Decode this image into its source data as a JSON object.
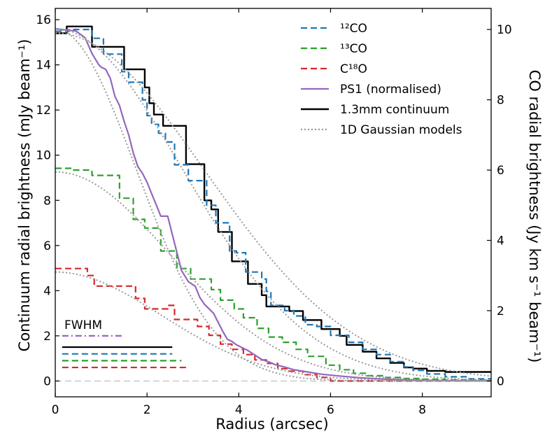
{
  "chart_data": {
    "type": "line",
    "xlabel": "Radius (arcsec)",
    "ylabel_left": "Continuum radial brightness (mJy beam⁻¹)",
    "ylabel_right": "CO radial brightness (Jy km s⁻¹ beam⁻¹)",
    "xlim": [
      0,
      9.5
    ],
    "ylim_left": [
      -0.7,
      16.5
    ],
    "ylim_right": [
      -0.45,
      10.6
    ],
    "x_ticks": [
      0,
      2,
      4,
      6,
      8
    ],
    "y_ticks_left": [
      0,
      2,
      4,
      6,
      8,
      10,
      12,
      14,
      16
    ],
    "y_ticks_right": [
      0,
      2,
      4,
      6,
      8,
      10
    ],
    "legend_position": "top-right",
    "colors": {
      "co12": "#1f77b4",
      "co13": "#2ca02c",
      "c18o": "#d62728",
      "ps1": "#9467bd",
      "continuum": "#000000",
      "gauss": "#999999",
      "zero": "#cccccc"
    },
    "legend": [
      {
        "key": "co12",
        "label": "¹²CO",
        "style": "dashed"
      },
      {
        "key": "co13",
        "label": "¹³CO",
        "style": "dashed"
      },
      {
        "key": "c18o",
        "label": "C¹⁸O",
        "style": "dashed"
      },
      {
        "key": "ps1",
        "label": "PS1 (normalised)",
        "style": "solid"
      },
      {
        "key": "continuum",
        "label": "1.3mm continuum",
        "style": "solid"
      },
      {
        "key": "gauss",
        "label": "1D Gaussian models",
        "style": "dotted"
      }
    ],
    "series": [
      {
        "key": "continuum",
        "name": "1.3mm continuum",
        "axis": "left",
        "style": "solid",
        "width": 2.4,
        "step": true,
        "x": [
          0,
          0.25,
          0.6,
          0.8,
          1.5,
          1.85,
          1.95,
          2.05,
          2.15,
          2.35,
          2.5,
          2.85,
          3.1,
          3.25,
          3.4,
          3.55,
          3.85,
          4.0,
          4.2,
          4.5,
          4.6,
          5.1,
          5.4,
          5.8,
          6.2,
          6.35,
          6.7,
          7.0,
          7.3,
          7.6,
          7.8,
          8.1,
          8.5,
          8.8,
          9.1,
          9.5
        ],
        "y": [
          15.4,
          15.7,
          15.7,
          14.8,
          13.8,
          13.8,
          13.0,
          12.3,
          11.8,
          11.3,
          11.3,
          9.6,
          9.6,
          8.0,
          7.6,
          6.6,
          5.3,
          5.3,
          4.3,
          3.8,
          3.3,
          3.1,
          2.7,
          2.3,
          2.0,
          1.6,
          1.3,
          1.0,
          0.8,
          0.6,
          0.55,
          0.45,
          0.4,
          0.4,
          0.4,
          0.4
        ]
      },
      {
        "key": "co12",
        "name": "¹²CO",
        "axis": "right",
        "style": "dashed",
        "width": 2.2,
        "step": true,
        "x": [
          0,
          0.3,
          0.6,
          0.8,
          1.05,
          1.35,
          1.45,
          1.6,
          1.9,
          2.0,
          2.1,
          2.25,
          2.4,
          2.5,
          2.6,
          2.9,
          3.1,
          3.3,
          3.5,
          3.8,
          3.95,
          4.15,
          4.5,
          4.6,
          4.7,
          5.0,
          5.2,
          5.45,
          5.7,
          6.0,
          6.4,
          6.7,
          7.0,
          7.3,
          7.6,
          7.8,
          8.1,
          8.5,
          9.0,
          9.5
        ],
        "y": [
          9.95,
          10.0,
          10.0,
          9.75,
          9.3,
          9.3,
          8.8,
          8.5,
          8.0,
          7.55,
          7.3,
          7.05,
          6.8,
          6.8,
          6.15,
          5.7,
          5.7,
          5.0,
          4.5,
          3.7,
          3.65,
          3.1,
          2.9,
          2.55,
          2.15,
          2.0,
          1.85,
          1.6,
          1.55,
          1.3,
          1.1,
          0.9,
          0.75,
          0.55,
          0.4,
          0.3,
          0.2,
          0.12,
          0.06,
          0.03
        ]
      },
      {
        "key": "co13",
        "name": "¹³CO",
        "axis": "right",
        "style": "dashed",
        "width": 2.2,
        "step": true,
        "x": [
          0,
          0.4,
          0.8,
          1.4,
          1.7,
          1.95,
          2.3,
          2.5,
          2.65,
          2.95,
          3.15,
          3.4,
          3.6,
          3.9,
          4.1,
          4.4,
          4.65,
          4.95,
          5.25,
          5.5,
          5.9,
          6.2,
          6.5,
          6.8,
          7.2,
          7.6,
          8.0,
          8.5,
          9.0,
          9.5
        ],
        "y": [
          6.05,
          6.0,
          5.85,
          5.2,
          4.6,
          4.35,
          3.7,
          3.7,
          3.2,
          2.9,
          2.9,
          2.6,
          2.3,
          2.05,
          1.8,
          1.5,
          1.25,
          1.1,
          0.9,
          0.7,
          0.45,
          0.32,
          0.22,
          0.15,
          0.1,
          0.07,
          0.05,
          0.03,
          0.02,
          0.01
        ]
      },
      {
        "key": "c18o",
        "name": "C¹⁸O",
        "axis": "right",
        "style": "dashed",
        "width": 2.2,
        "step": true,
        "x": [
          0,
          0.35,
          0.7,
          0.85,
          1.3,
          1.75,
          1.95,
          2.15,
          2.45,
          2.6,
          2.9,
          3.1,
          3.35,
          3.6,
          3.85,
          4.1,
          4.35,
          4.6,
          4.85,
          5.1,
          5.4,
          5.7,
          6.0,
          6.5,
          7.0,
          8.0,
          9.5
        ],
        "y": [
          3.2,
          3.2,
          3.0,
          2.7,
          2.7,
          2.35,
          2.05,
          2.05,
          2.15,
          1.75,
          1.75,
          1.55,
          1.3,
          1.05,
          0.9,
          0.75,
          0.6,
          0.5,
          0.35,
          0.28,
          0.18,
          0.1,
          0.0,
          0.0,
          0.0,
          0.0,
          0.0
        ]
      },
      {
        "key": "ps1",
        "name": "PS1 (normalised)",
        "axis": "left",
        "style": "solid",
        "width": 2.2,
        "step": false,
        "x": [
          0,
          0.2,
          0.45,
          0.65,
          0.8,
          0.95,
          1.0,
          1.1,
          1.2,
          1.3,
          1.4,
          1.5,
          1.6,
          1.7,
          1.8,
          1.9,
          2.0,
          2.1,
          2.2,
          2.3,
          2.45,
          2.55,
          2.65,
          2.75,
          2.9,
          3.05,
          3.15,
          3.25,
          3.35,
          3.45,
          3.55,
          3.65,
          3.75,
          3.85,
          3.95,
          4.05,
          4.2,
          4.35,
          4.5,
          4.65,
          4.8,
          5.0,
          5.2,
          5.5,
          5.8,
          6.2,
          6.6,
          7.0,
          7.5,
          8.0,
          9.0,
          9.5
        ],
        "y": [
          15.6,
          15.55,
          15.5,
          15.2,
          14.5,
          14.0,
          13.9,
          13.8,
          13.4,
          12.6,
          12.2,
          11.5,
          10.9,
          10.1,
          9.5,
          9.2,
          8.8,
          8.3,
          7.8,
          7.3,
          7.3,
          6.5,
          5.7,
          4.9,
          4.4,
          4.2,
          3.7,
          3.4,
          3.2,
          3.0,
          2.6,
          2.2,
          1.85,
          1.75,
          1.6,
          1.5,
          1.35,
          1.15,
          0.95,
          0.85,
          0.72,
          0.62,
          0.5,
          0.4,
          0.3,
          0.22,
          0.15,
          0.1,
          0.06,
          0.03,
          0.01,
          0.0
        ]
      },
      {
        "key": "gauss",
        "name": "1D Gaussian models",
        "axis": "left",
        "style": "dotted",
        "width": 2.0,
        "model": {
          "type": "gaussian",
          "amp": 15.6,
          "sigma": 2.75,
          "n": 96
        }
      },
      {
        "key": "gauss",
        "name": "1D Gaussian models",
        "axis": "right",
        "style": "dotted",
        "width": 2.0,
        "model": {
          "type": "gaussian",
          "amp": 9.9,
          "sigma": 3.25,
          "n": 96
        }
      },
      {
        "key": "gauss",
        "name": "1D Gaussian models",
        "axis": "right",
        "style": "dotted",
        "width": 2.0,
        "model": {
          "type": "gaussian",
          "amp": 5.95,
          "sigma": 2.5,
          "n": 96
        }
      },
      {
        "key": "gauss",
        "name": "1D Gaussian models",
        "axis": "right",
        "style": "dotted",
        "width": 2.0,
        "model": {
          "type": "gaussian",
          "amp": 3.1,
          "sigma": 2.3,
          "n": 96
        }
      },
      {
        "key": "gauss",
        "name": "1D Gaussian models",
        "axis": "left",
        "style": "dotted",
        "width": 2.0,
        "model": {
          "type": "gaussian",
          "amp": 15.6,
          "sigma": 1.75,
          "n": 96
        }
      }
    ],
    "zero_line": {
      "axis": "left",
      "y": 0
    },
    "fwhm": {
      "title": "FWHM",
      "bars": [
        {
          "key": "ps1",
          "y": 2.0,
          "x": [
            0.15,
            1.45
          ],
          "style": "dashdot"
        },
        {
          "key": "continuum",
          "y": 1.5,
          "x": [
            0.15,
            2.55
          ],
          "style": "solid"
        },
        {
          "key": "co12",
          "y": 1.2,
          "x": [
            0.15,
            2.55
          ],
          "style": "dashed"
        },
        {
          "key": "co13",
          "y": 0.9,
          "x": [
            0.15,
            2.75
          ],
          "style": "dashed"
        },
        {
          "key": "c18o",
          "y": 0.6,
          "x": [
            0.15,
            2.85
          ],
          "style": "dashed"
        }
      ]
    }
  }
}
